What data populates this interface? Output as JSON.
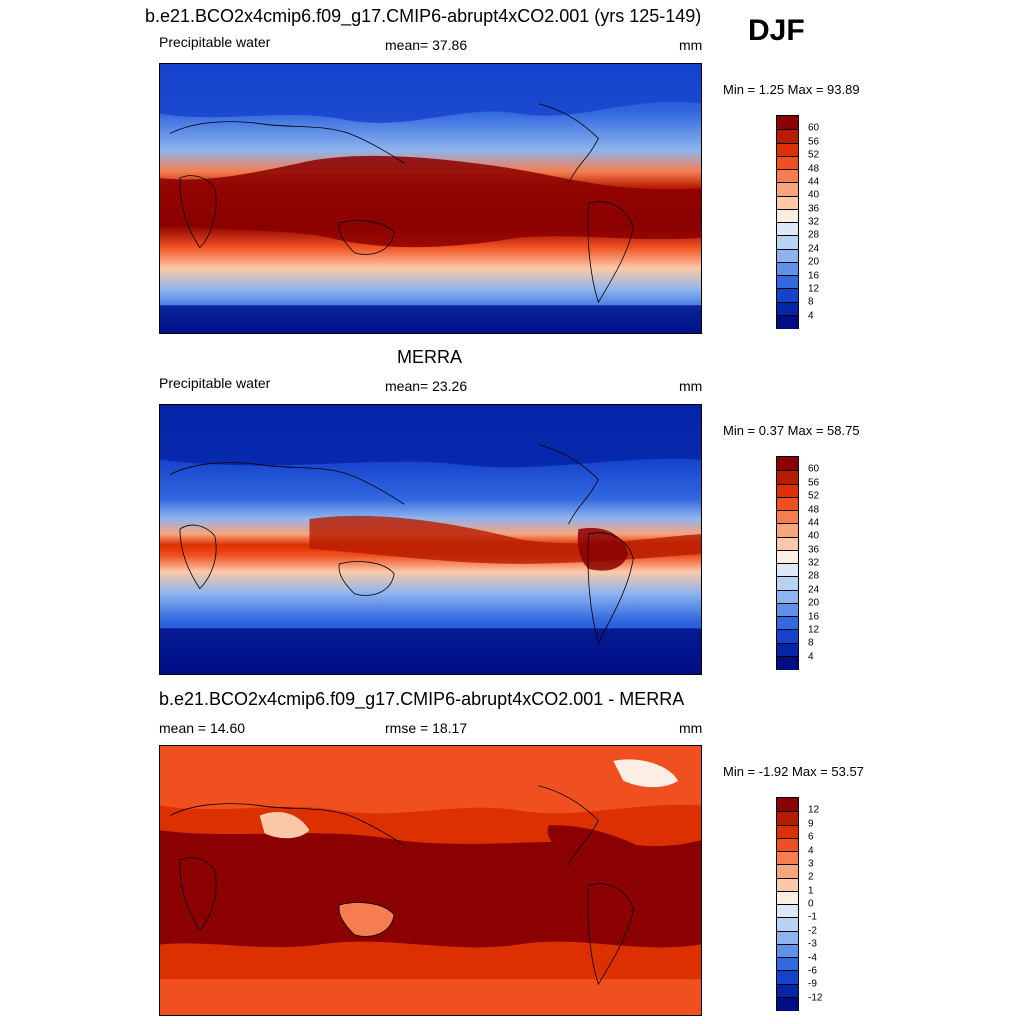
{
  "season": "DJF",
  "panels": [
    {
      "title": "b.e21.BCO2x4cmip6.f09_g17.CMIP6-abrupt4xCO2.001 (yrs 125-149)",
      "variable": "Precipitable water",
      "stat": "mean=  37.86",
      "units": "mm",
      "minmax": "Min =   1.25 Max =  93.89"
    },
    {
      "title": "MERRA",
      "variable": "Precipitable water",
      "stat": "mean=  23.26",
      "units": "mm",
      "minmax": "Min =   0.37 Max =  58.75"
    },
    {
      "title": "b.e21.BCO2x4cmip6.f09_g17.CMIP6-abrupt4xCO2.001 - MERRA",
      "mean": "mean =  14.60",
      "rmse": "rmse =  18.17",
      "units": "mm",
      "minmax": "Min =  -1.92 Max =  53.57"
    }
  ],
  "colorbars": {
    "absolute_levels": [
      "60",
      "56",
      "52",
      "48",
      "44",
      "40",
      "36",
      "32",
      "28",
      "24",
      "20",
      "16",
      "12",
      "8",
      "4"
    ],
    "difference_levels": [
      "12",
      "9",
      "6",
      "4",
      "3",
      "2",
      "1",
      "0",
      "-1",
      "-2",
      "-3",
      "-4",
      "-6",
      "-9",
      "-12"
    ],
    "colors": [
      "#8b0000",
      "#b71c00",
      "#dc3000",
      "#f05020",
      "#f57d50",
      "#f8a47d",
      "#fbc9a8",
      "#fdeee4",
      "#dde9f8",
      "#b8d2f4",
      "#8db4ee",
      "#5f91e8",
      "#3268e0",
      "#1542cc",
      "#0525a8",
      "#000e84"
    ]
  }
}
